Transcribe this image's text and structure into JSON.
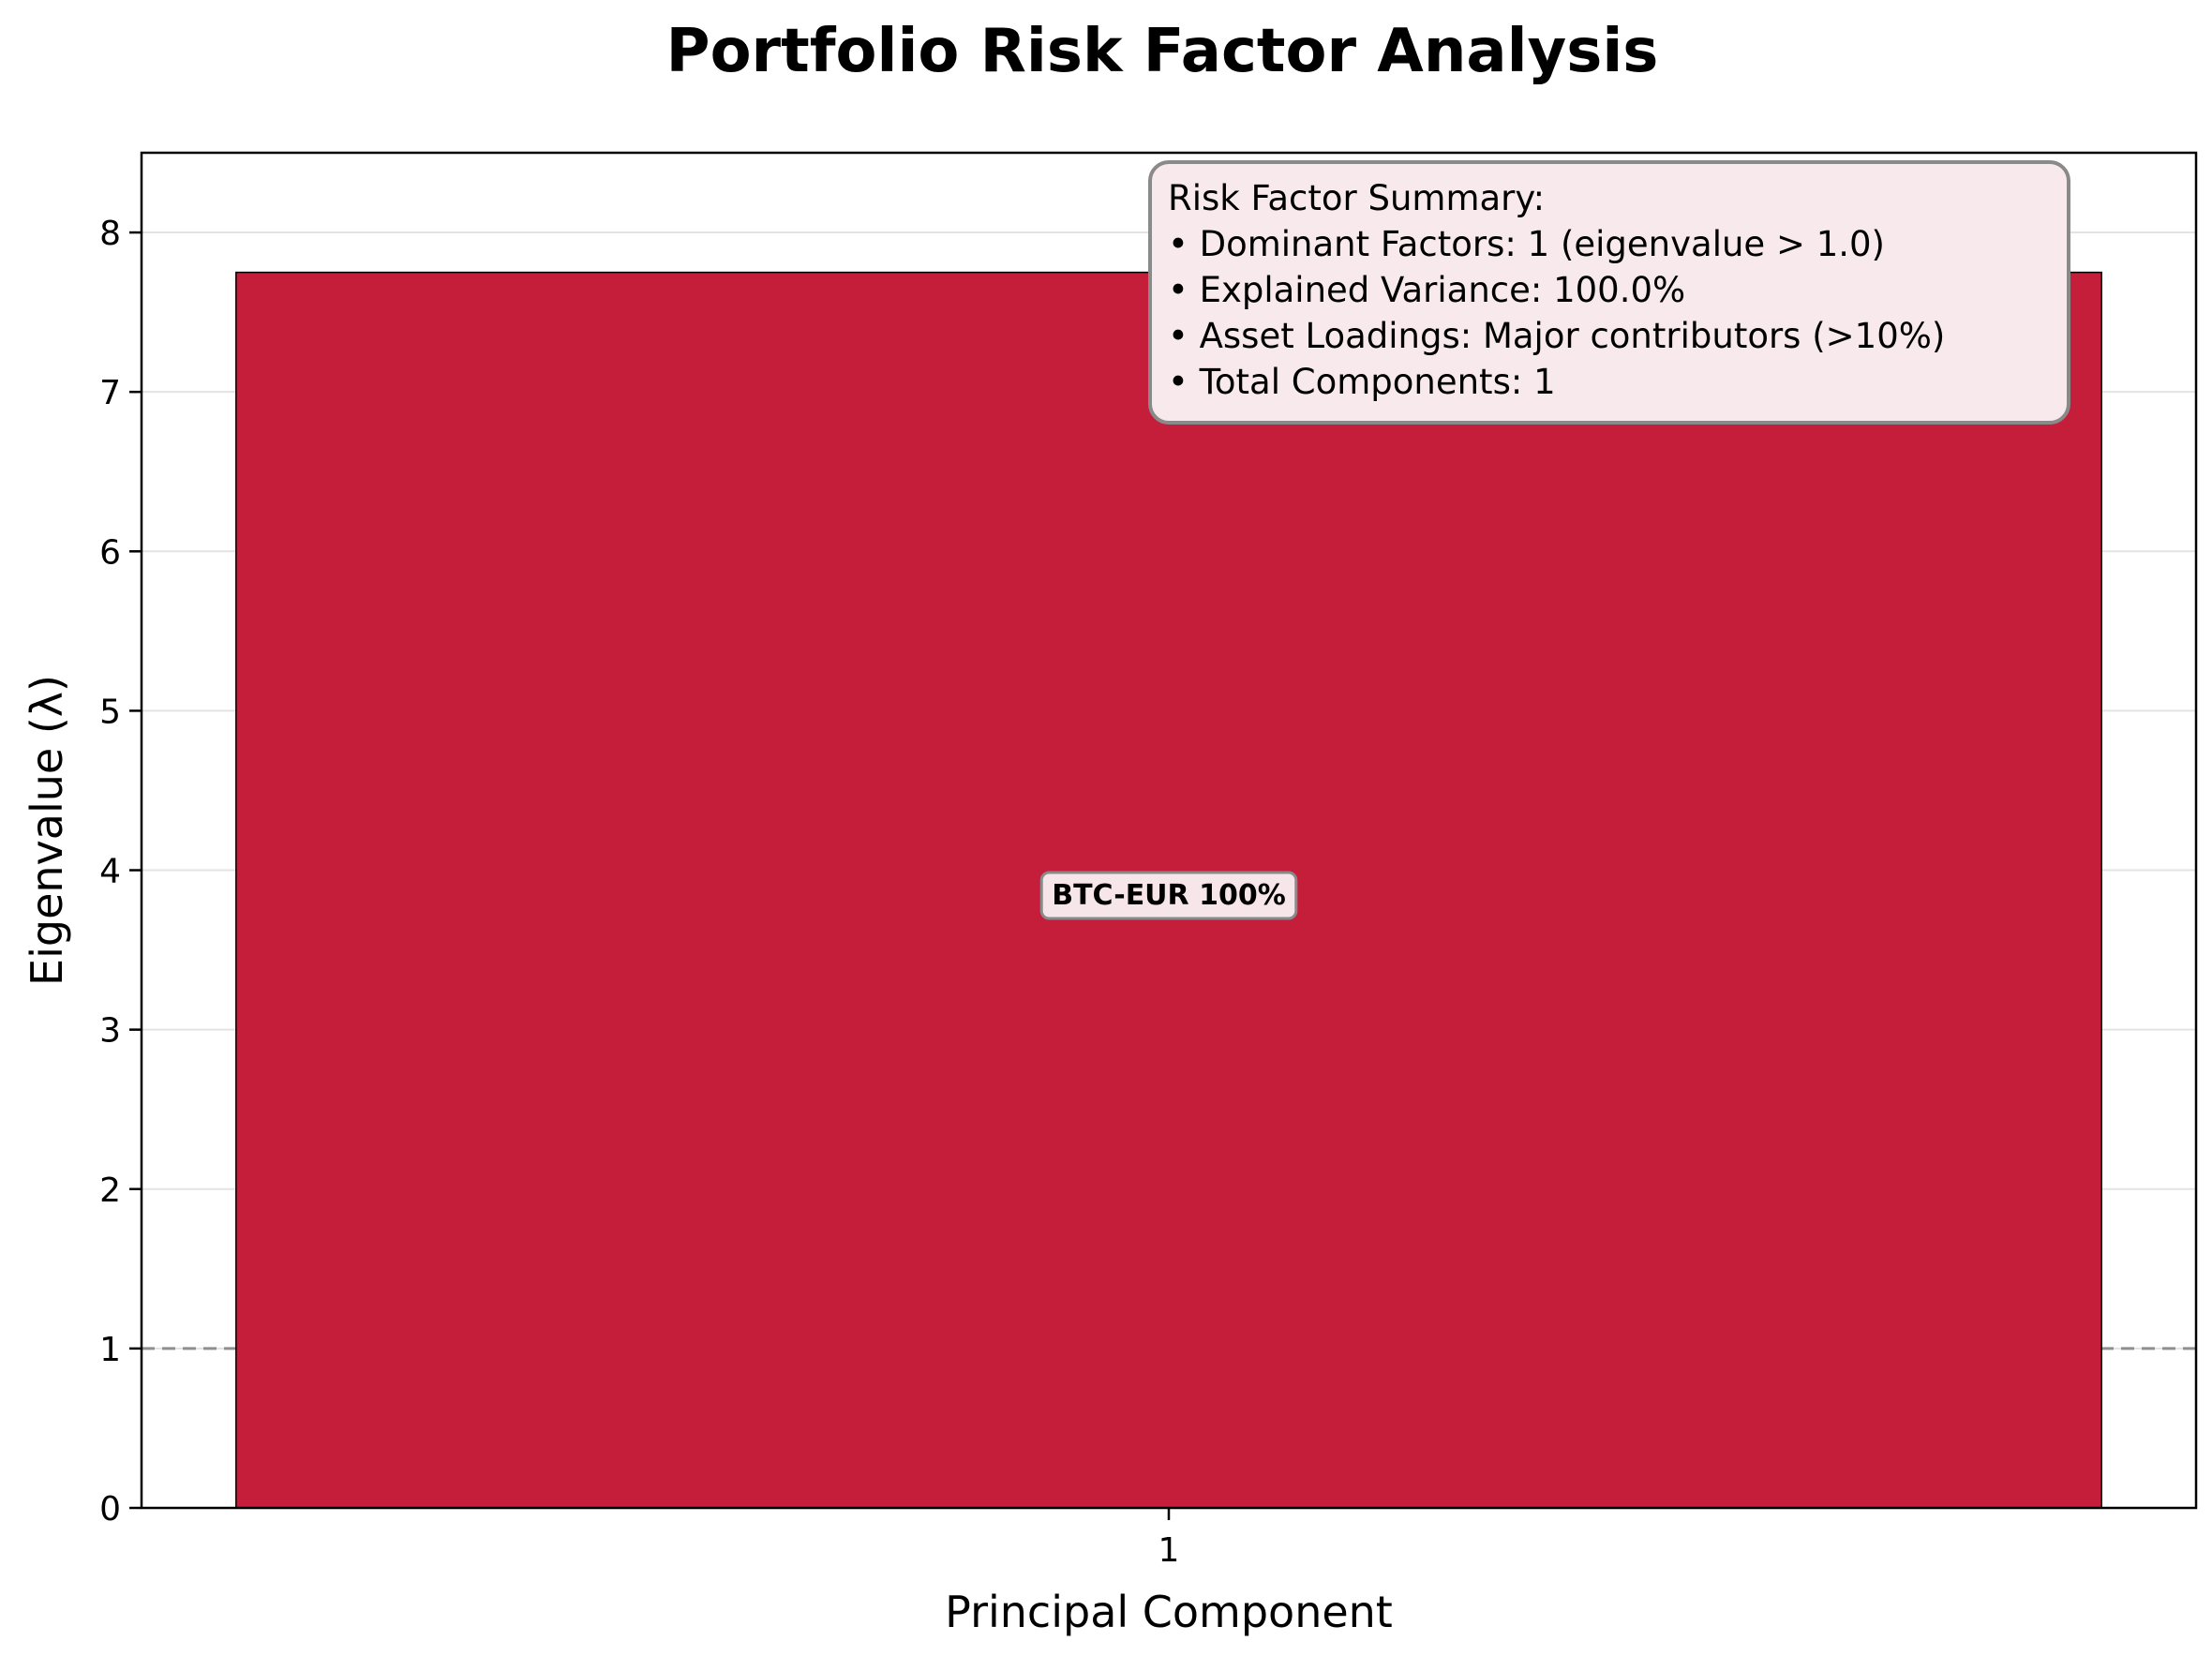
{
  "chart_data": {
    "type": "bar",
    "title": "Portfolio Risk Factor Analysis",
    "xlabel": "Principal Component",
    "ylabel": "Eigenvalue (λ)",
    "categories": [
      "1"
    ],
    "values": [
      7.75
    ],
    "ylim": [
      0,
      8.5
    ],
    "yticks": [
      "0",
      "1",
      "2",
      "3",
      "4",
      "5",
      "6",
      "7",
      "8"
    ],
    "grid": true,
    "reference_line": {
      "y": 1.0,
      "style": "dashed"
    },
    "bar_color": "#C41E3A",
    "bar_labels": [
      {
        "category": "1",
        "text": "BTC-EUR 100%",
        "y": 3.85
      }
    ],
    "summary_box": {
      "title": "Risk Factor Summary:",
      "lines": [
        "• Dominant Factors: 1 (eigenvalue > 1.0)",
        "• Explained Variance: 100.0%",
        "• Asset Loadings: Major contributors (>10%)",
        "• Total Components: 1"
      ]
    }
  }
}
